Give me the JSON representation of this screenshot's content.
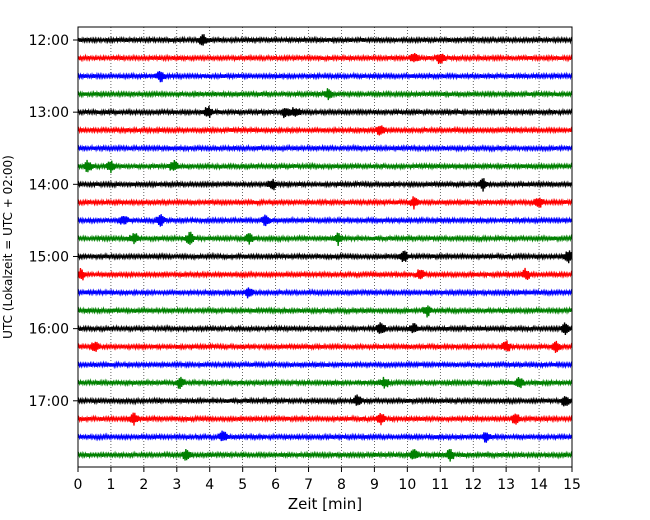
{
  "chart_data": {
    "type": "line",
    "title": "",
    "xlabel": "Zeit  [min]",
    "ylabel": "UTC (Lokalzeit = UTC + 02:00)",
    "xlim": [
      0,
      15
    ],
    "x_ticks": [
      0,
      1,
      2,
      3,
      4,
      5,
      6,
      7,
      8,
      9,
      10,
      11,
      12,
      13,
      14,
      15
    ],
    "y_tick_labels": [
      "12:00",
      "13:00",
      "14:00",
      "15:00",
      "16:00",
      "17:00"
    ],
    "traces_per_hour": 4,
    "minutes_per_trace": 15,
    "grid": "vertical dotted at each minute",
    "trace_colors": [
      "#000000",
      "#ff0000",
      "#0000ff",
      "#008000"
    ],
    "series": [
      {
        "start": "12:00",
        "events_min": [
          3.8
        ]
      },
      {
        "start": "12:15",
        "events_min": [
          10.2,
          11.0
        ]
      },
      {
        "start": "12:30",
        "events_min": [
          2.5
        ]
      },
      {
        "start": "12:45",
        "events_min": [
          7.6
        ]
      },
      {
        "start": "13:00",
        "events_min": [
          3.95,
          6.3,
          6.6
        ]
      },
      {
        "start": "13:15",
        "events_min": [
          9.2
        ]
      },
      {
        "start": "13:30",
        "events_min": []
      },
      {
        "start": "13:45",
        "events_min": [
          0.3,
          1.0,
          2.9
        ]
      },
      {
        "start": "14:00",
        "events_min": [
          5.9,
          12.3
        ]
      },
      {
        "start": "14:15",
        "events_min": [
          10.2,
          14.0
        ]
      },
      {
        "start": "14:30",
        "events_min": [
          1.4,
          2.5,
          5.7
        ]
      },
      {
        "start": "14:45",
        "events_min": [
          1.7,
          3.4,
          5.2,
          7.9
        ]
      },
      {
        "start": "15:00",
        "events_min": [
          9.9,
          14.9
        ]
      },
      {
        "start": "15:15",
        "events_min": [
          0.1,
          10.4,
          13.6
        ]
      },
      {
        "start": "15:30",
        "events_min": [
          5.2
        ]
      },
      {
        "start": "15:45",
        "events_min": [
          10.6
        ]
      },
      {
        "start": "16:00",
        "events_min": [
          9.2,
          10.2,
          14.8
        ]
      },
      {
        "start": "16:15",
        "events_min": [
          0.5,
          13.0,
          14.5
        ]
      },
      {
        "start": "16:30",
        "events_min": []
      },
      {
        "start": "16:45",
        "events_min": [
          3.1,
          9.3,
          13.4
        ]
      },
      {
        "start": "17:00",
        "events_min": [
          8.5,
          14.8
        ]
      },
      {
        "start": "17:15",
        "events_min": [
          1.7,
          9.2,
          13.3
        ]
      },
      {
        "start": "17:30",
        "events_min": [
          4.4,
          12.4
        ]
      },
      {
        "start": "17:45",
        "events_min": [
          3.3,
          10.2,
          11.3
        ]
      }
    ]
  }
}
